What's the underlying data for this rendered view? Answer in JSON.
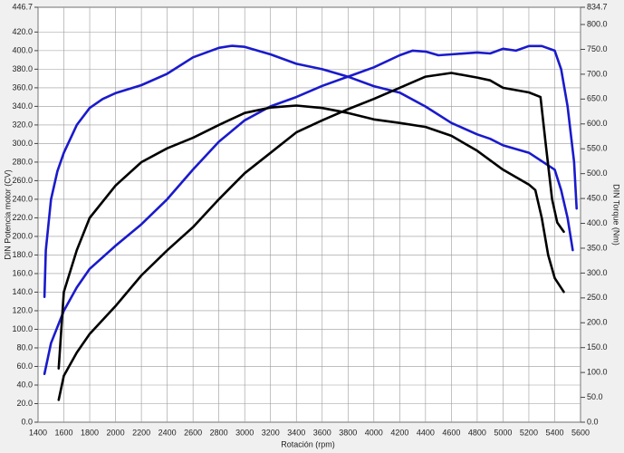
{
  "chart_data": {
    "type": "line",
    "xlabel": "Rotación (rpm)",
    "ylabel": "DIN Potencia motor (CV)",
    "y2label": "DIN Torque (Nm)",
    "grid": true,
    "xlim": [
      1400,
      5600
    ],
    "xticks": [
      1400,
      1600,
      1800,
      2000,
      2200,
      2400,
      2600,
      2800,
      3000,
      3200,
      3400,
      3600,
      3800,
      4000,
      4200,
      4400,
      4600,
      4800,
      5000,
      5200,
      5400,
      5600
    ],
    "ylim": [
      0,
      446.7
    ],
    "yticks": [
      {
        "value": 0,
        "label": "0.0"
      },
      {
        "value": 20,
        "label": "20.0"
      },
      {
        "value": 40,
        "label": "40.0"
      },
      {
        "value": 60,
        "label": "60.0"
      },
      {
        "value": 80,
        "label": "80.0"
      },
      {
        "value": 100,
        "label": "100.0"
      },
      {
        "value": 120,
        "label": "120.0"
      },
      {
        "value": 140,
        "label": "140.0"
      },
      {
        "value": 160,
        "label": "160.0"
      },
      {
        "value": 180,
        "label": "180.0"
      },
      {
        "value": 200,
        "label": "200.0"
      },
      {
        "value": 220,
        "label": "220.0"
      },
      {
        "value": 240,
        "label": "240.0"
      },
      {
        "value": 260,
        "label": "260.0"
      },
      {
        "value": 280,
        "label": "280.0"
      },
      {
        "value": 300,
        "label": "300.0"
      },
      {
        "value": 320,
        "label": "320.0"
      },
      {
        "value": 340,
        "label": "340.0"
      },
      {
        "value": 360,
        "label": "360.0"
      },
      {
        "value": 380,
        "label": "380.0"
      },
      {
        "value": 400,
        "label": "400.0"
      },
      {
        "value": 420,
        "label": "420.0"
      },
      {
        "value": 446.7,
        "label": "446.7"
      }
    ],
    "y2lim": [
      0,
      834.7
    ],
    "y2ticks": [
      {
        "value": 0,
        "label": "0.0"
      },
      {
        "value": 50,
        "label": "50.0"
      },
      {
        "value": 100,
        "label": "100.0"
      },
      {
        "value": 150,
        "label": "150.0"
      },
      {
        "value": 200,
        "label": "200.0"
      },
      {
        "value": 250,
        "label": "250.0"
      },
      {
        "value": 300,
        "label": "300.0"
      },
      {
        "value": 350,
        "label": "350.0"
      },
      {
        "value": 400,
        "label": "400.0"
      },
      {
        "value": 450,
        "label": "450.0"
      },
      {
        "value": 500,
        "label": "500.0"
      },
      {
        "value": 550,
        "label": "550.0"
      },
      {
        "value": 600,
        "label": "600.0"
      },
      {
        "value": 650,
        "label": "650.0"
      },
      {
        "value": 700,
        "label": "700.0"
      },
      {
        "value": 750,
        "label": "750.0"
      },
      {
        "value": 800,
        "label": "800.0"
      },
      {
        "value": 834.7,
        "label": "834.7"
      }
    ],
    "series": [
      {
        "color": "#1a1acc",
        "axis": "y",
        "x": [
          1450,
          1500,
          1600,
          1700,
          1800,
          2000,
          2200,
          2400,
          2600,
          2800,
          3000,
          3200,
          3400,
          3600,
          3800,
          4000,
          4200,
          4300,
          4400,
          4500,
          4600,
          4800,
          4900,
          5000,
          5100,
          5200,
          5300,
          5400,
          5450,
          5500,
          5550,
          5570
        ],
        "values": [
          52,
          85,
          120,
          145,
          165,
          190,
          213,
          240,
          272,
          302,
          325,
          340,
          350,
          362,
          372,
          382,
          395,
          400,
          399,
          395,
          396,
          398,
          397,
          402,
          400,
          405,
          405,
          400,
          380,
          340,
          280,
          230
        ]
      },
      {
        "color": "#1a1acc",
        "axis": "y2",
        "x": [
          1450,
          1460,
          1500,
          1550,
          1600,
          1700,
          1800,
          1900,
          2000,
          2200,
          2400,
          2600,
          2800,
          2900,
          3000,
          3200,
          3400,
          3600,
          3800,
          4000,
          4200,
          4400,
          4600,
          4800,
          4900,
          5000,
          5200,
          5400,
          5450,
          5500,
          5540
        ],
        "values": [
          252,
          346,
          448,
          505,
          542,
          598,
          632,
          650,
          662,
          678,
          701,
          734,
          753,
          757,
          755,
          740,
          721,
          710,
          695,
          676,
          663,
          635,
          602,
          579,
          570,
          557,
          542,
          508,
          467,
          411,
          346
        ]
      },
      {
        "color": "#000000",
        "axis": "y",
        "x": [
          1560,
          1600,
          1700,
          1800,
          2000,
          2200,
          2400,
          2600,
          2800,
          3000,
          3200,
          3400,
          3600,
          3800,
          4000,
          4200,
          4400,
          4600,
          4800,
          4900,
          5000,
          5200,
          5290,
          5330,
          5380,
          5420,
          5470
        ],
        "values": [
          24,
          50,
          75,
          95,
          125,
          158,
          185,
          210,
          240,
          268,
          290,
          312,
          325,
          337,
          348,
          360,
          372,
          376,
          371,
          368,
          360,
          355,
          350,
          300,
          240,
          215,
          205
        ]
      },
      {
        "color": "#000000",
        "axis": "y2",
        "x": [
          1560,
          1580,
          1600,
          1700,
          1800,
          2000,
          2200,
          2400,
          2600,
          2800,
          3000,
          3200,
          3400,
          3600,
          3800,
          4000,
          4200,
          4400,
          4600,
          4800,
          5000,
          5200,
          5250,
          5300,
          5350,
          5400,
          5470
        ],
        "values": [
          108,
          187,
          262,
          346,
          411,
          476,
          523,
          551,
          572,
          598,
          622,
          633,
          637,
          632,
          622,
          609,
          602,
          594,
          576,
          546,
          508,
          478,
          467,
          411,
          336,
          290,
          262
        ]
      }
    ]
  }
}
